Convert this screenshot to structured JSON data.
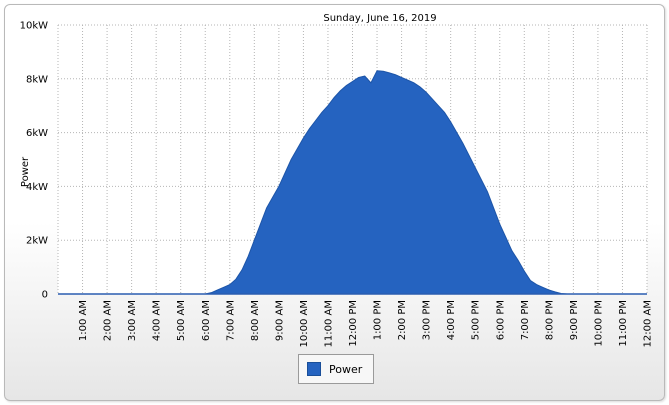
{
  "chart_data": {
    "type": "area",
    "title": "Sunday, June 16, 2019",
    "ylabel": "Power",
    "xlabel": "",
    "ylim": [
      0,
      10
    ],
    "y_ticks": [
      "0",
      "2kW",
      "4kW",
      "6kW",
      "8kW",
      "10kW"
    ],
    "x_ticks": [
      "1:00 AM",
      "2:00 AM",
      "3:00 AM",
      "4:00 AM",
      "5:00 AM",
      "6:00 AM",
      "7:00 AM",
      "8:00 AM",
      "9:00 AM",
      "10:00 AM",
      "11:00 AM",
      "12:00 PM",
      "1:00 PM",
      "2:00 PM",
      "3:00 PM",
      "4:00 PM",
      "5:00 PM",
      "6:00 PM",
      "7:00 PM",
      "8:00 PM",
      "9:00 PM",
      "10:00 PM",
      "11:00 PM",
      "12:00 AM"
    ],
    "grid": true,
    "legend_position": "bottom-center",
    "series": [
      {
        "name": "Power",
        "color": "#2563c0",
        "x": [
          0,
          1,
          2,
          3,
          4,
          5,
          6,
          6.25,
          6.5,
          6.75,
          7,
          7.25,
          7.5,
          7.75,
          8,
          8.25,
          8.5,
          8.75,
          9,
          9.25,
          9.5,
          9.75,
          10,
          10.25,
          10.5,
          10.75,
          11,
          11.25,
          11.5,
          11.75,
          12,
          12.25,
          12.5,
          12.75,
          13,
          13.25,
          13.5,
          13.75,
          14,
          14.25,
          14.5,
          14.75,
          15,
          15.25,
          15.5,
          15.75,
          16,
          16.25,
          16.5,
          16.75,
          17,
          17.25,
          17.5,
          17.75,
          18,
          18.25,
          18.5,
          18.75,
          19,
          19.25,
          19.5,
          19.75,
          20,
          20.25,
          20.5,
          20.75,
          21,
          22,
          23,
          24
        ],
        "values": [
          0,
          0,
          0,
          0,
          0,
          0,
          0,
          0.05,
          0.15,
          0.25,
          0.35,
          0.55,
          0.9,
          1.4,
          2.0,
          2.6,
          3.2,
          3.6,
          4.0,
          4.5,
          5.0,
          5.4,
          5.8,
          6.15,
          6.45,
          6.75,
          7.0,
          7.3,
          7.55,
          7.75,
          7.9,
          8.05,
          8.1,
          7.85,
          8.3,
          8.28,
          8.22,
          8.15,
          8.05,
          7.95,
          7.85,
          7.7,
          7.5,
          7.25,
          7.0,
          6.75,
          6.4,
          6.0,
          5.6,
          5.15,
          4.7,
          4.25,
          3.8,
          3.2,
          2.6,
          2.1,
          1.6,
          1.25,
          0.85,
          0.5,
          0.35,
          0.25,
          0.15,
          0.08,
          0.02,
          0,
          0,
          0,
          0,
          0
        ]
      }
    ]
  },
  "legend": {
    "label": "Power"
  }
}
